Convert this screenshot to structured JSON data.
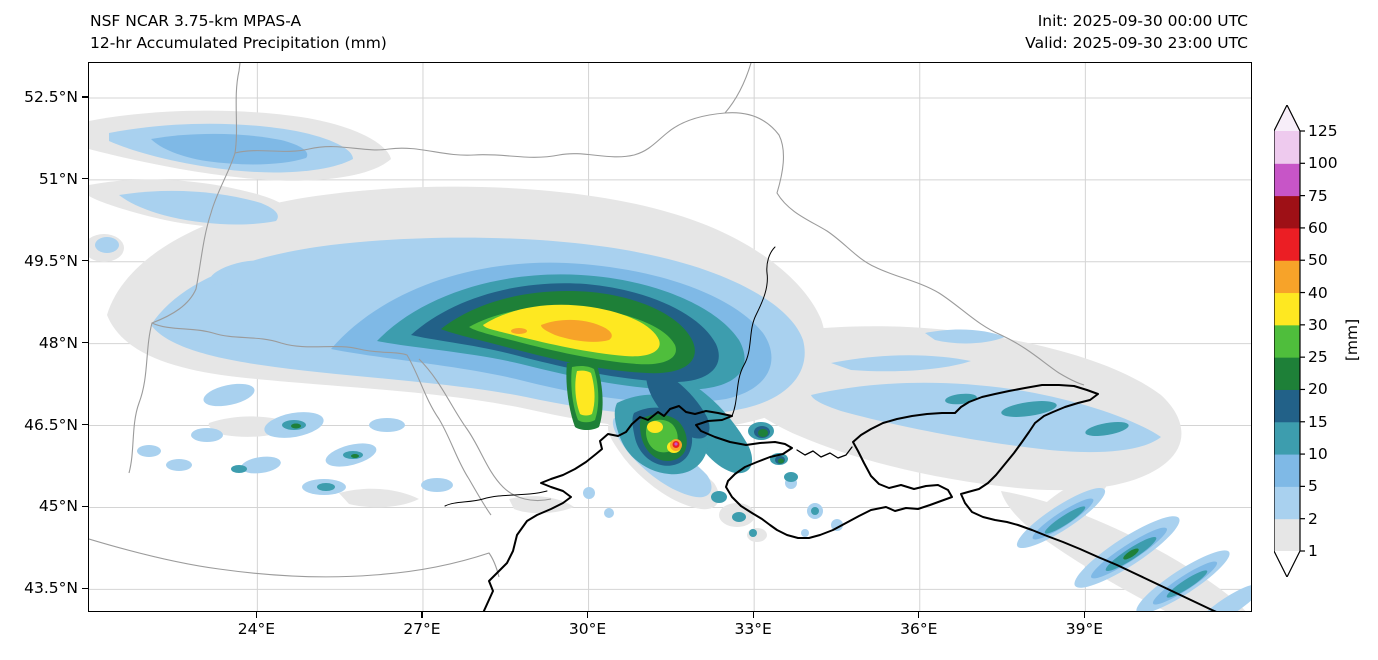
{
  "header": {
    "title_line1": "NSF NCAR 3.75-km MPAS-A",
    "title_line2": "12-hr Accumulated Precipitation (mm)",
    "init_label": "Init: 2025-09-30 00:00 UTC",
    "valid_label": "Valid: 2025-09-30 23:00 UTC"
  },
  "axes": {
    "x_ticks": [
      {
        "label": "24°E",
        "lon": 24
      },
      {
        "label": "27°E",
        "lon": 27
      },
      {
        "label": "30°E",
        "lon": 30
      },
      {
        "label": "33°E",
        "lon": 33
      },
      {
        "label": "36°E",
        "lon": 36
      },
      {
        "label": "39°E",
        "lon": 39
      }
    ],
    "y_ticks": [
      {
        "label": "52.5°N",
        "lat": 52.5
      },
      {
        "label": "51°N",
        "lat": 51
      },
      {
        "label": "49.5°N",
        "lat": 49.5
      },
      {
        "label": "48°N",
        "lat": 48
      },
      {
        "label": "46.5°N",
        "lat": 46.5
      },
      {
        "label": "45°N",
        "lat": 45
      },
      {
        "label": "43.5°N",
        "lat": 43.5
      }
    ]
  },
  "colorbar": {
    "unit_label": "[mm]",
    "levels": [
      "1",
      "2",
      "5",
      "10",
      "15",
      "20",
      "25",
      "30",
      "40",
      "50",
      "60",
      "75",
      "100",
      "125"
    ],
    "colors": [
      "#e6e6e6",
      "#a9d1ef",
      "#7fb9e6",
      "#3d9dae",
      "#226188",
      "#1e8038",
      "#4fbe3c",
      "#fee821",
      "#f7a329",
      "#eb1e24",
      "#9e1016",
      "#c755c7",
      "#eecaee"
    ],
    "over_color": "#f7eef9",
    "under_color": "#ffffff"
  },
  "chart_data": {
    "type": "heatmap",
    "subtype": "filled_contour_precipitation_map",
    "title": "NSF NCAR 3.75-km MPAS-A",
    "subtitle": "12-hr Accumulated Precipitation (mm)",
    "init_time": "2025-09-30 00:00 UTC",
    "valid_time": "2025-09-30 23:00 UTC",
    "units": "mm",
    "lon_range_deg_e": [
      21.0,
      42.0
    ],
    "lat_range_deg_n": [
      43.1,
      53.1
    ],
    "x_tick_lons_deg_e": [
      24,
      27,
      30,
      33,
      36,
      39
    ],
    "y_tick_lats_deg_n": [
      52.5,
      51,
      49.5,
      48,
      46.5,
      45,
      43.5
    ],
    "contour_levels_mm": [
      1,
      2,
      5,
      10,
      15,
      20,
      25,
      30,
      40,
      50,
      60,
      75,
      100,
      125
    ],
    "grid": true,
    "legend_position": "right-colorbar",
    "features": [
      {
        "region": "western/central Ukraine band (24-32E, 46.5-50.5N)",
        "description": "large WSW-ENE precipitation shield: broad 1-10 mm area with embedded 10-30 mm band and a 30-50 mm core near 29-30.5E, 48-48.3N"
      },
      {
        "region": "near 31.6E, 46.2N (Dnieper-Bug estuary / Mykolaiv area)",
        "description": "compact intense cell, local maximum 50-100 mm (small red/magenta bullseye)"
      },
      {
        "region": "northwest corner (21-26E, 50.5-52N)",
        "description": "light streaks of 1-10 mm"
      },
      {
        "region": "scattered cells 22-26E, 46-47.5N",
        "description": "isolated 2-25 mm showers"
      },
      {
        "region": "north of Azov Sea and Crimea (33-40E, 45-47.5N)",
        "description": "broad 1-2 mm area with embedded 2-15 mm streaks"
      },
      {
        "region": "Caucasus Black Sea coast (38-42E, 43-45N)",
        "description": "NE-SW oriented streaks of 2-20 mm"
      }
    ]
  }
}
